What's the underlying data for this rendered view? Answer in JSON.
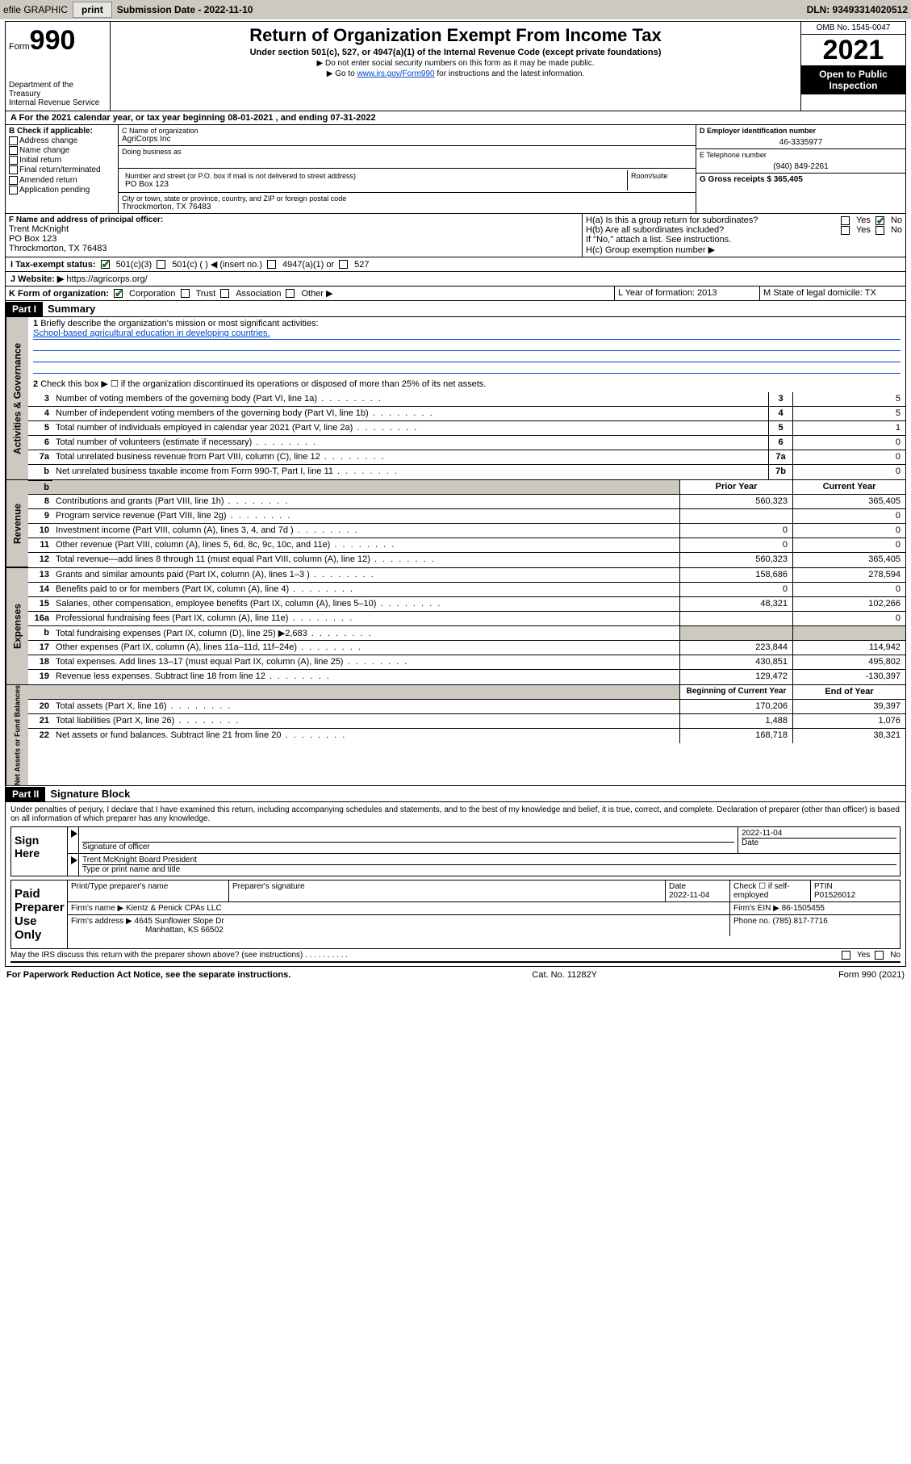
{
  "topbar": {
    "efile": "efile GRAPHIC",
    "print": "print",
    "subdate_label": "Submission Date - 2022-11-10",
    "dln": "DLN: 93493314020512"
  },
  "header": {
    "form_prefix": "Form",
    "form_num": "990",
    "dept": "Department of the Treasury",
    "irs": "Internal Revenue Service",
    "title": "Return of Organization Exempt From Income Tax",
    "sub": "Under section 501(c), 527, or 4947(a)(1) of the Internal Revenue Code (except private foundations)",
    "note1": "▶ Do not enter social security numbers on this form as it may be made public.",
    "note2_pre": "▶ Go to ",
    "note2_link": "www.irs.gov/Form990",
    "note2_post": " for instructions and the latest information.",
    "omb": "OMB No. 1545-0047",
    "year": "2021",
    "inspect": "Open to Public Inspection"
  },
  "period": {
    "a": "A For the 2021 calendar year, or tax year beginning 08-01-2021   , and ending 07-31-2022"
  },
  "sec_b": {
    "b_label": "B Check if applicable:",
    "opts": [
      "Address change",
      "Name change",
      "Initial return",
      "Final return/terminated",
      "Amended return",
      "Application pending"
    ],
    "c_label": "C Name of organization",
    "c_val": "AgriCorps Inc",
    "dba_label": "Doing business as",
    "addr_label": "Number and street (or P.O. box if mail is not delivered to street address)",
    "room": "Room/suite",
    "addr_val": "PO Box 123",
    "city_label": "City or town, state or province, country, and ZIP or foreign postal code",
    "city_val": "Throckmorton, TX  76483",
    "d_label": "D Employer identification number",
    "d_val": "46-3335977",
    "e_label": "E Telephone number",
    "e_val": "(940) 849-2261",
    "g_label": "G Gross receipts $ 365,405"
  },
  "sec_f": {
    "f_label": "F  Name and address of principal officer:",
    "name": "Trent McKnight",
    "addr": "PO Box 123",
    "city": "Throckmorton, TX  76483",
    "ha": "H(a)  Is this a group return for subordinates?",
    "hb": "H(b)  Are all subordinates included?",
    "hb_note": "If \"No,\" attach a list. See instructions.",
    "hc": "H(c)  Group exemption number ▶",
    "yes": "Yes",
    "no": "No"
  },
  "sec_i": {
    "label": "I    Tax-exempt status:",
    "o1": "501(c)(3)",
    "o2": "501(c) (  ) ◀ (insert no.)",
    "o3": "4947(a)(1) or",
    "o4": "527"
  },
  "sec_j": {
    "label": "J   Website: ▶",
    "val": "https://agricorps.org/"
  },
  "sec_k": {
    "label": "K Form of organization:",
    "corp": "Corporation",
    "trust": "Trust",
    "assoc": "Association",
    "other": "Other ▶",
    "l": "L Year of formation: 2013",
    "m": "M State of legal domicile: TX"
  },
  "part1": {
    "hdr": "Part I",
    "title": "Summary",
    "q1": "Briefly describe the organization's mission or most significant activities:",
    "mission": "School-based agricultural education in developing countries.",
    "q2": "Check this box ▶ ☐  if the organization discontinued its operations or disposed of more than 25% of its net assets.",
    "lines_gov": [
      {
        "n": "3",
        "t": "Number of voting members of the governing body (Part VI, line 1a)",
        "box": "3",
        "v": "5"
      },
      {
        "n": "4",
        "t": "Number of independent voting members of the governing body (Part VI, line 1b)",
        "box": "4",
        "v": "5"
      },
      {
        "n": "5",
        "t": "Total number of individuals employed in calendar year 2021 (Part V, line 2a)",
        "box": "5",
        "v": "1"
      },
      {
        "n": "6",
        "t": "Total number of volunteers (estimate if necessary)",
        "box": "6",
        "v": "0"
      },
      {
        "n": "7a",
        "t": "Total unrelated business revenue from Part VIII, column (C), line 12",
        "box": "7a",
        "v": "0"
      },
      {
        "n": "b",
        "t": "Net unrelated business taxable income from Form 990-T, Part I, line 11",
        "box": "7b",
        "v": "0"
      }
    ],
    "col_prior": "Prior Year",
    "col_curr": "Current Year",
    "rev": [
      {
        "n": "8",
        "t": "Contributions and grants (Part VIII, line 1h)",
        "p": "560,323",
        "c": "365,405"
      },
      {
        "n": "9",
        "t": "Program service revenue (Part VIII, line 2g)",
        "p": "",
        "c": "0"
      },
      {
        "n": "10",
        "t": "Investment income (Part VIII, column (A), lines 3, 4, and 7d )",
        "p": "0",
        "c": "0"
      },
      {
        "n": "11",
        "t": "Other revenue (Part VIII, column (A), lines 5, 6d, 8c, 9c, 10c, and 11e)",
        "p": "0",
        "c": "0"
      },
      {
        "n": "12",
        "t": "Total revenue—add lines 8 through 11 (must equal Part VIII, column (A), line 12)",
        "p": "560,323",
        "c": "365,405"
      }
    ],
    "exp": [
      {
        "n": "13",
        "t": "Grants and similar amounts paid (Part IX, column (A), lines 1–3 )",
        "p": "158,686",
        "c": "278,594"
      },
      {
        "n": "14",
        "t": "Benefits paid to or for members (Part IX, column (A), line 4)",
        "p": "0",
        "c": "0"
      },
      {
        "n": "15",
        "t": "Salaries, other compensation, employee benefits (Part IX, column (A), lines 5–10)",
        "p": "48,321",
        "c": "102,266"
      },
      {
        "n": "16a",
        "t": "Professional fundraising fees (Part IX, column (A), line 11e)",
        "p": "",
        "c": "0"
      },
      {
        "n": "b",
        "t": "Total fundraising expenses (Part IX, column (D), line 25) ▶2,683",
        "p": "shade",
        "c": "shade"
      },
      {
        "n": "17",
        "t": "Other expenses (Part IX, column (A), lines 11a–11d, 11f–24e)",
        "p": "223,844",
        "c": "114,942"
      },
      {
        "n": "18",
        "t": "Total expenses. Add lines 13–17 (must equal Part IX, column (A), line 25)",
        "p": "430,851",
        "c": "495,802"
      },
      {
        "n": "19",
        "t": "Revenue less expenses. Subtract line 18 from line 12",
        "p": "129,472",
        "c": "-130,397"
      }
    ],
    "col_begin": "Beginning of Current Year",
    "col_end": "End of Year",
    "net": [
      {
        "n": "20",
        "t": "Total assets (Part X, line 16)",
        "p": "170,206",
        "c": "39,397"
      },
      {
        "n": "21",
        "t": "Total liabilities (Part X, line 26)",
        "p": "1,488",
        "c": "1,076"
      },
      {
        "n": "22",
        "t": "Net assets or fund balances. Subtract line 21 from line 20",
        "p": "168,718",
        "c": "38,321"
      }
    ],
    "side_gov": "Activities & Governance",
    "side_rev": "Revenue",
    "side_exp": "Expenses",
    "side_net": "Net Assets or Fund Balances"
  },
  "part2": {
    "hdr": "Part II",
    "title": "Signature Block",
    "decl": "Under penalties of perjury, I declare that I have examined this return, including accompanying schedules and statements, and to the best of my knowledge and belief, it is true, correct, and complete. Declaration of preparer (other than officer) is based on all information of which preparer has any knowledge.",
    "sign_here": "Sign Here",
    "sig_officer": "Signature of officer",
    "date": "Date",
    "sig_date": "2022-11-04",
    "name_title": "Trent McKnight  Board President",
    "type_name": "Type or print name and title",
    "paid": "Paid Preparer Use Only",
    "prep_name_lbl": "Print/Type preparer's name",
    "prep_sig_lbl": "Preparer's signature",
    "prep_date_lbl": "Date",
    "prep_date": "2022-11-04",
    "check_self": "Check ☐ if self-employed",
    "ptin_lbl": "PTIN",
    "ptin": "P01526012",
    "firm_name_lbl": "Firm's name    ▶",
    "firm_name": "Kientz & Penick CPAs LLC",
    "firm_ein_lbl": "Firm's EIN ▶",
    "firm_ein": "86-1505455",
    "firm_addr_lbl": "Firm's address ▶",
    "firm_addr": "4645 Sunflower Slope Dr",
    "firm_city": "Manhattan, KS  66502",
    "phone_lbl": "Phone no.",
    "phone": "(785) 817-7716",
    "may_irs": "May the IRS discuss this return with the preparer shown above? (see instructions)"
  },
  "footer": {
    "l": "For Paperwork Reduction Act Notice, see the separate instructions.",
    "m": "Cat. No. 11282Y",
    "r": "Form 990 (2021)"
  }
}
